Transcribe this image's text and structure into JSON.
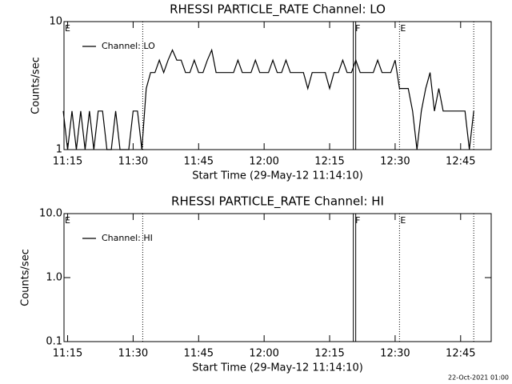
{
  "footer": "22-Oct-2021 01:00",
  "chart_data": [
    {
      "type": "line",
      "title": "RHESSI PARTICLE_RATE Channel: LO",
      "ylabel": "Counts/sec",
      "xlabel": "Start Time (29-May-12 11:14:10)",
      "log_y": true,
      "ylim": [
        1,
        10
      ],
      "yticks": [
        1,
        10
      ],
      "xlim": [
        14.17,
        112
      ],
      "xticks": [
        {
          "value": 15,
          "label": "11:15"
        },
        {
          "value": 30,
          "label": "11:30"
        },
        {
          "value": 45,
          "label": "11:45"
        },
        {
          "value": 60,
          "label": "12:00"
        },
        {
          "value": 75,
          "label": "12:15"
        },
        {
          "value": 90,
          "label": "12:30"
        },
        {
          "value": 105,
          "label": "12:45"
        }
      ],
      "flags": [
        {
          "label": "E",
          "x": 14.17,
          "line": "none"
        },
        {
          "label": "F",
          "x": 80.7,
          "line": "solid"
        },
        {
          "label": "E",
          "x": 91,
          "line": "dotted"
        }
      ],
      "extra_lines": [
        {
          "x": 32.2,
          "line": "dotted"
        },
        {
          "x": 108,
          "line": "dotted"
        }
      ],
      "legend": "upper left",
      "x": [
        14,
        15,
        16,
        17,
        18,
        19,
        20,
        21,
        22,
        23,
        24,
        25,
        26,
        27,
        28,
        29,
        30,
        31,
        32,
        33,
        34,
        35,
        36,
        37,
        38,
        39,
        40,
        41,
        42,
        43,
        44,
        45,
        46,
        47,
        48,
        49,
        50,
        51,
        52,
        53,
        54,
        55,
        56,
        57,
        58,
        59,
        60,
        61,
        62,
        63,
        64,
        65,
        66,
        67,
        68,
        69,
        70,
        71,
        72,
        73,
        74,
        75,
        76,
        77,
        78,
        79,
        80,
        81,
        82,
        83,
        84,
        85,
        86,
        87,
        88,
        89,
        90,
        91,
        92,
        93,
        94,
        95,
        96,
        97,
        98,
        99,
        100,
        101,
        102,
        103,
        104,
        105,
        106,
        107,
        108
      ],
      "series": [
        {
          "name": "Channel: LO",
          "color": "#000000",
          "values": [
            2,
            1,
            2,
            1,
            2,
            1,
            2,
            1,
            2,
            2,
            1,
            1,
            2,
            1,
            1,
            1,
            2,
            2,
            1,
            3,
            4,
            4,
            5,
            4,
            5,
            6,
            5,
            5,
            4,
            4,
            5,
            4,
            4,
            5,
            6,
            4,
            4,
            4,
            4,
            4,
            5,
            4,
            4,
            4,
            5,
            4,
            4,
            4,
            5,
            4,
            4,
            5,
            4,
            4,
            4,
            4,
            3,
            4,
            4,
            4,
            4,
            3,
            4,
            4,
            5,
            4,
            4,
            5,
            4,
            4,
            4,
            4,
            5,
            4,
            4,
            4,
            5,
            3,
            3,
            3,
            2,
            1,
            2,
            3,
            4,
            2,
            3,
            2,
            2,
            2,
            2,
            2,
            2,
            1,
            2
          ]
        }
      ]
    },
    {
      "type": "line",
      "title": "RHESSI PARTICLE_RATE Channel: HI",
      "ylabel": "Counts/sec",
      "xlabel": "Start Time (29-May-12 11:14:10)",
      "log_y": true,
      "ylim": [
        0.1,
        10
      ],
      "yticks": [
        0.1,
        {
          "value": 1,
          "label": "1.0"
        },
        {
          "value": 10,
          "label": "10.0"
        }
      ],
      "xlim": [
        14.17,
        112
      ],
      "xticks": [
        {
          "value": 15,
          "label": "11:15"
        },
        {
          "value": 30,
          "label": "11:30"
        },
        {
          "value": 45,
          "label": "11:45"
        },
        {
          "value": 60,
          "label": "12:00"
        },
        {
          "value": 75,
          "label": "12:15"
        },
        {
          "value": 90,
          "label": "12:30"
        },
        {
          "value": 105,
          "label": "12:45"
        }
      ],
      "flags": [
        {
          "label": "E",
          "x": 14.17,
          "line": "none"
        },
        {
          "label": "F",
          "x": 80.7,
          "line": "solid"
        },
        {
          "label": "E",
          "x": 91,
          "line": "dotted"
        }
      ],
      "extra_lines": [
        {
          "x": 32.2,
          "line": "dotted"
        },
        {
          "x": 108,
          "line": "dotted"
        }
      ],
      "legend": "upper left",
      "x": [],
      "series": [
        {
          "name": "Channel: HI",
          "color": "#000000",
          "values": []
        }
      ]
    }
  ]
}
